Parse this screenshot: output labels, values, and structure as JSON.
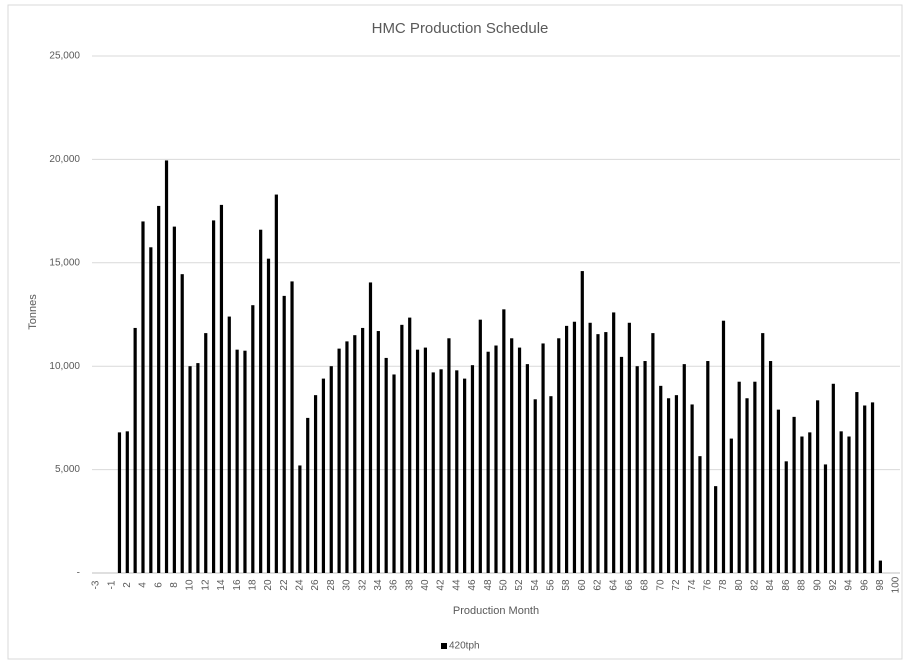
{
  "chart_data": {
    "type": "bar",
    "title": "HMC Production Schedule",
    "x_label": "Production Month",
    "y_label": "Tonnes",
    "categories": [
      "-3",
      null,
      "-1",
      null,
      "2",
      null,
      "4",
      null,
      "6",
      null,
      "8",
      null,
      "10",
      null,
      "12",
      null,
      "14",
      null,
      "16",
      null,
      "18",
      null,
      "20",
      null,
      "22",
      null,
      "24",
      null,
      "26",
      null,
      "28",
      null,
      "30",
      null,
      "32",
      null,
      "34",
      null,
      "36",
      null,
      "38",
      null,
      "40",
      null,
      "42",
      null,
      "44",
      null,
      "46",
      null,
      "48",
      null,
      "50",
      null,
      "52",
      null,
      "54",
      null,
      "56",
      null,
      "58",
      null,
      "60",
      null,
      "62",
      null,
      "64",
      null,
      "66",
      null,
      "68",
      null,
      "70",
      null,
      "72",
      null,
      "74",
      null,
      "76",
      null,
      "78",
      null,
      "80",
      null,
      "82",
      null,
      "84",
      null,
      "86",
      null,
      "88",
      null,
      "90",
      null,
      "92",
      null,
      "94",
      null,
      "96",
      null,
      "98",
      null,
      "100"
    ],
    "series": [
      {
        "name": "420tph",
        "color": "#000000",
        "values": [
          null,
          null,
          null,
          6800,
          6850,
          11850,
          17000,
          15750,
          17750,
          19950,
          16750,
          14450,
          10000,
          10150,
          11600,
          17050,
          17800,
          12400,
          10800,
          10750,
          12950,
          16600,
          15200,
          18300,
          13400,
          14100,
          5200,
          7500,
          8600,
          9400,
          10000,
          10850,
          11200,
          11500,
          11850,
          14050,
          11700,
          10400,
          9600,
          12000,
          12350,
          10800,
          10900,
          9700,
          9850,
          11350,
          9800,
          9400,
          10050,
          12250,
          10700,
          11000,
          12750,
          11350,
          10900,
          10100,
          8400,
          11100,
          8550,
          11350,
          11950,
          12150,
          14600,
          12100,
          11550,
          11650,
          12600,
          10450,
          12100,
          10000,
          10250,
          11600,
          9050,
          8450,
          8600,
          10100,
          8150,
          5650,
          10250,
          4200,
          12200,
          6500,
          9250,
          8450,
          9250,
          11600,
          10250,
          7900,
          5400,
          7550,
          6600,
          6800,
          8350,
          5250,
          9150,
          6850,
          6600,
          8750,
          8100,
          8250,
          600,
          null,
          null
        ]
      }
    ],
    "ylim": [
      0,
      25000
    ],
    "yticks": [
      {
        "value": 0,
        "label": "-"
      },
      {
        "value": 5000,
        "label": "5,000"
      },
      {
        "value": 10000,
        "label": "10,000"
      },
      {
        "value": 15000,
        "label": "15,000"
      },
      {
        "value": 20000,
        "label": "20,000"
      },
      {
        "value": 25000,
        "label": "25,000"
      }
    ],
    "grid": true,
    "legend": "bottom"
  }
}
